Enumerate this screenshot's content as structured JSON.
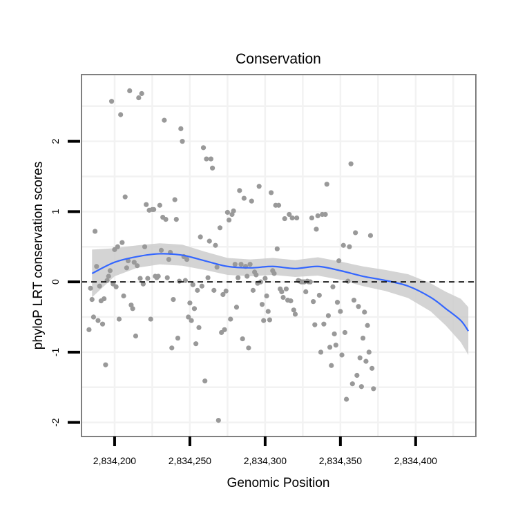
{
  "chart_data": {
    "type": "scatter",
    "title": "Conservation",
    "xlabel": "Genomic Position",
    "ylabel": "phyloP LRT conservation scores",
    "xlim": [
      2834178,
      2834440
    ],
    "ylim": [
      -2.2,
      2.95
    ],
    "x_ticks": [
      2834200,
      2834250,
      2834300,
      2834350,
      2834400
    ],
    "x_tick_labels": [
      "2,834,200",
      "2,834,250",
      "2,834,300",
      "2,834,350",
      "2,834,400"
    ],
    "y_ticks": [
      -2,
      -1,
      0,
      1,
      2
    ],
    "y_tick_labels": [
      "-2",
      "-1",
      "0",
      "1",
      "2"
    ],
    "grid": true,
    "reference_line": {
      "y": 0,
      "style": "dashed"
    },
    "colors": {
      "points": "#999999",
      "smooth": "#3366ff",
      "ribbon": "#cccccc",
      "panel_border": "#7f7f7f",
      "grid": "#f2f2f2"
    },
    "points": [
      [
        2834183,
        -0.68
      ],
      [
        2834184,
        -0.09
      ],
      [
        2834185,
        -0.25
      ],
      [
        2834186,
        -0.5
      ],
      [
        2834187,
        0.72
      ],
      [
        2834188,
        0.22
      ],
      [
        2834189,
        -0.55
      ],
      [
        2834190,
        -0.06
      ],
      [
        2834191,
        -0.27
      ],
      [
        2834192,
        -0.6
      ],
      [
        2834193,
        -0.24
      ],
      [
        2834194,
        -1.18
      ],
      [
        2834195,
        0.02
      ],
      [
        2834196,
        0.08
      ],
      [
        2834197,
        0.16
      ],
      [
        2834198,
        2.57
      ],
      [
        2834199,
        -0.03
      ],
      [
        2834200,
        0.46
      ],
      [
        2834201,
        -0.07
      ],
      [
        2834202,
        0.5
      ],
      [
        2834203,
        -0.53
      ],
      [
        2834204,
        2.38
      ],
      [
        2834205,
        0.56
      ],
      [
        2834206,
        -0.2
      ],
      [
        2834207,
        1.21
      ],
      [
        2834208,
        0.2
      ],
      [
        2834209,
        0.3
      ],
      [
        2834210,
        2.72
      ],
      [
        2834211,
        -0.33
      ],
      [
        2834212,
        -0.38
      ],
      [
        2834213,
        0.28
      ],
      [
        2834214,
        -0.77
      ],
      [
        2834215,
        0.23
      ],
      [
        2834216,
        2.62
      ],
      [
        2834217,
        0.05
      ],
      [
        2834218,
        2.68
      ],
      [
        2834219,
        -0.03
      ],
      [
        2834220,
        0.5
      ],
      [
        2834221,
        1.1
      ],
      [
        2834222,
        0.05
      ],
      [
        2834223,
        1.02
      ],
      [
        2834224,
        -0.53
      ],
      [
        2834225,
        1.03
      ],
      [
        2834226,
        1.03
      ],
      [
        2834227,
        0.08
      ],
      [
        2834228,
        0.06
      ],
      [
        2834229,
        0.08
      ],
      [
        2834230,
        1.09
      ],
      [
        2834231,
        0.45
      ],
      [
        2834232,
        0.92
      ],
      [
        2834233,
        2.3
      ],
      [
        2834234,
        0.89
      ],
      [
        2834235,
        0.06
      ],
      [
        2834236,
        0.32
      ],
      [
        2834237,
        0.42
      ],
      [
        2834238,
        -0.94
      ],
      [
        2834239,
        -0.25
      ],
      [
        2834240,
        1.17
      ],
      [
        2834241,
        0.89
      ],
      [
        2834242,
        -0.8
      ],
      [
        2834243,
        0.01
      ],
      [
        2834244,
        2.18
      ],
      [
        2834245,
        2.0
      ],
      [
        2834246,
        0.36
      ],
      [
        2834247,
        0.02
      ],
      [
        2834248,
        0.32
      ],
      [
        2834249,
        -0.5
      ],
      [
        2834250,
        -0.3
      ],
      [
        2834251,
        -0.55
      ],
      [
        2834252,
        -0.04
      ],
      [
        2834253,
        -0.38
      ],
      [
        2834254,
        -0.88
      ],
      [
        2834255,
        -0.12
      ],
      [
        2834256,
        -0.65
      ],
      [
        2834257,
        0.64
      ],
      [
        2834258,
        -0.06
      ],
      [
        2834259,
        1.91
      ],
      [
        2834260,
        -1.41
      ],
      [
        2834261,
        1.75
      ],
      [
        2834262,
        0.06
      ],
      [
        2834263,
        0.58
      ],
      [
        2834264,
        1.75
      ],
      [
        2834265,
        1.62
      ],
      [
        2834266,
        -0.12
      ],
      [
        2834267,
        0.52
      ],
      [
        2834268,
        0.21
      ],
      [
        2834269,
        -1.97
      ],
      [
        2834270,
        0.77
      ],
      [
        2834271,
        -0.72
      ],
      [
        2834272,
        -0.18
      ],
      [
        2834273,
        -0.68
      ],
      [
        2834274,
        -0.13
      ],
      [
        2834275,
        0.99
      ],
      [
        2834276,
        0.88
      ],
      [
        2834277,
        -0.53
      ],
      [
        2834278,
        0.96
      ],
      [
        2834279,
        1.01
      ],
      [
        2834280,
        0.25
      ],
      [
        2834281,
        -0.36
      ],
      [
        2834282,
        0.06
      ],
      [
        2834283,
        1.3
      ],
      [
        2834284,
        0.25
      ],
      [
        2834285,
        -0.81
      ],
      [
        2834286,
        1.19
      ],
      [
        2834287,
        0.22
      ],
      [
        2834288,
        0.08
      ],
      [
        2834289,
        -0.94
      ],
      [
        2834290,
        0.25
      ],
      [
        2834291,
        1.15
      ],
      [
        2834292,
        -0.12
      ],
      [
        2834293,
        0.14
      ],
      [
        2834294,
        0.1
      ],
      [
        2834295,
        -0.02
      ],
      [
        2834296,
        1.36
      ],
      [
        2834297,
        0.0
      ],
      [
        2834298,
        -0.32
      ],
      [
        2834299,
        -0.55
      ],
      [
        2834300,
        0.05
      ],
      [
        2834301,
        -0.2
      ],
      [
        2834302,
        -0.42
      ],
      [
        2834303,
        -0.54
      ],
      [
        2834304,
        1.27
      ],
      [
        2834305,
        0.16
      ],
      [
        2834306,
        0.12
      ],
      [
        2834307,
        1.09
      ],
      [
        2834308,
        0.47
      ],
      [
        2834309,
        1.09
      ],
      [
        2834310,
        -0.1
      ],
      [
        2834311,
        -0.14
      ],
      [
        2834312,
        -0.22
      ],
      [
        2834313,
        0.9
      ],
      [
        2834314,
        -0.1
      ],
      [
        2834315,
        -0.26
      ],
      [
        2834316,
        0.96
      ],
      [
        2834317,
        -0.27
      ],
      [
        2834318,
        0.91
      ],
      [
        2834319,
        -0.4
      ],
      [
        2834320,
        -0.46
      ],
      [
        2834321,
        0.91
      ],
      [
        2834322,
        0.02
      ],
      [
        2834323,
        0.01
      ],
      [
        2834324,
        0.0
      ],
      [
        2834325,
        0.0
      ],
      [
        2834326,
        0.0
      ],
      [
        2834327,
        -0.14
      ],
      [
        2834328,
        0.01
      ],
      [
        2834329,
        0.0
      ],
      [
        2834330,
        0.0
      ],
      [
        2834331,
        0.91
      ],
      [
        2834332,
        -0.28
      ],
      [
        2834333,
        -0.61
      ],
      [
        2834334,
        0.75
      ],
      [
        2834335,
        0.94
      ],
      [
        2834336,
        -0.19
      ],
      [
        2834337,
        -1.0
      ],
      [
        2834338,
        0.96
      ],
      [
        2834339,
        -0.6
      ],
      [
        2834340,
        0.96
      ],
      [
        2834341,
        1.39
      ],
      [
        2834342,
        -0.48
      ],
      [
        2834343,
        -0.93
      ],
      [
        2834344,
        -1.19
      ],
      [
        2834345,
        -0.07
      ],
      [
        2834346,
        -0.74
      ],
      [
        2834347,
        -0.9
      ],
      [
        2834348,
        -0.29
      ],
      [
        2834349,
        0.3
      ],
      [
        2834350,
        -0.42
      ],
      [
        2834351,
        -1.04
      ],
      [
        2834352,
        0.52
      ],
      [
        2834353,
        -0.72
      ],
      [
        2834354,
        -1.67
      ],
      [
        2834355,
        0.01
      ],
      [
        2834356,
        0.5
      ],
      [
        2834357,
        1.68
      ],
      [
        2834358,
        -1.45
      ],
      [
        2834359,
        -0.26
      ],
      [
        2834360,
        0.7
      ],
      [
        2834361,
        -1.33
      ],
      [
        2834362,
        -0.35
      ],
      [
        2834363,
        -1.08
      ],
      [
        2834364,
        -1.49
      ],
      [
        2834365,
        -0.8
      ],
      [
        2834366,
        -0.43
      ],
      [
        2834367,
        -1.13
      ],
      [
        2834368,
        -0.62
      ],
      [
        2834369,
        -1.0
      ],
      [
        2834370,
        0.66
      ],
      [
        2834371,
        -1.23
      ],
      [
        2834372,
        -1.52
      ]
    ],
    "smooth": {
      "x": [
        2834185,
        2834200,
        2834215,
        2834230,
        2834245,
        2834260,
        2834275,
        2834290,
        2834305,
        2834320,
        2834335,
        2834350,
        2834365,
        2834380,
        2834395,
        2834410,
        2834420,
        2834430,
        2834435
      ],
      "y": [
        0.12,
        0.28,
        0.36,
        0.4,
        0.38,
        0.3,
        0.22,
        0.2,
        0.22,
        0.19,
        0.22,
        0.16,
        0.08,
        0.02,
        -0.06,
        -0.22,
        -0.38,
        -0.55,
        -0.7
      ],
      "ribbon_lower": [
        -0.22,
        0.08,
        0.2,
        0.25,
        0.23,
        0.17,
        0.1,
        0.08,
        0.1,
        0.07,
        0.09,
        0.03,
        -0.06,
        -0.13,
        -0.23,
        -0.42,
        -0.62,
        -0.86,
        -1.04
      ],
      "ribbon_upper": [
        0.46,
        0.48,
        0.52,
        0.55,
        0.53,
        0.43,
        0.34,
        0.32,
        0.34,
        0.31,
        0.35,
        0.29,
        0.22,
        0.17,
        0.11,
        -0.02,
        -0.14,
        -0.24,
        -0.36
      ]
    }
  }
}
